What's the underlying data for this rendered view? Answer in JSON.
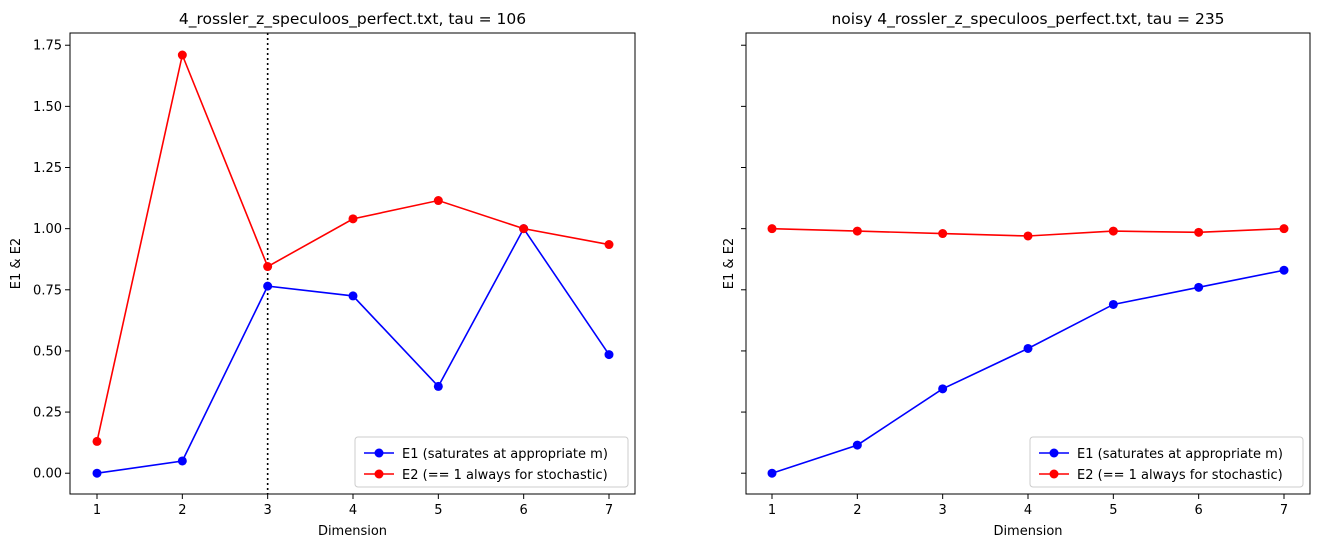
{
  "chart_data": [
    {
      "type": "line",
      "title": "4_rossler_z_speculoos_perfect.txt, tau = 106",
      "xlabel": "Dimension",
      "ylabel": "E1 & E2",
      "x": [
        1,
        2,
        3,
        4,
        5,
        6,
        7
      ],
      "xticks": [
        "1",
        "2",
        "3",
        "4",
        "5",
        "6",
        "7"
      ],
      "yticks": [
        "0.00",
        "0.25",
        "0.50",
        "0.75",
        "1.00",
        "1.25",
        "1.50",
        "1.75"
      ],
      "ylim": [
        -0.085,
        1.8
      ],
      "vline_x": 3,
      "series": [
        {
          "name": "E1 (saturates at appropriate m)",
          "color": "#0000ff",
          "values": [
            0.0,
            0.05,
            0.765,
            0.725,
            0.355,
            1.0,
            0.485
          ]
        },
        {
          "name": "E2 (== 1 always for stochastic)",
          "color": "#ff0000",
          "values": [
            0.13,
            1.71,
            0.845,
            1.04,
            1.115,
            1.0,
            0.935
          ]
        }
      ],
      "legend": "lower right"
    },
    {
      "type": "line",
      "title": "noisy 4_rossler_z_speculoos_perfect.txt, tau = 235",
      "xlabel": "Dimension",
      "ylabel": "E1 & E2",
      "x": [
        1,
        2,
        3,
        4,
        5,
        6,
        7
      ],
      "xticks": [
        "1",
        "2",
        "3",
        "4",
        "5",
        "6",
        "7"
      ],
      "ylim": [
        -0.085,
        1.8
      ],
      "series": [
        {
          "name": "E1 (saturates at appropriate m)",
          "color": "#0000ff",
          "values": [
            0.0,
            0.115,
            0.345,
            0.51,
            0.69,
            0.76,
            0.83
          ]
        },
        {
          "name": "E2 (== 1 always for stochastic)",
          "color": "#ff0000",
          "values": [
            1.0,
            0.99,
            0.98,
            0.97,
            0.99,
            0.985,
            1.0
          ]
        }
      ],
      "legend": "lower right"
    }
  ]
}
